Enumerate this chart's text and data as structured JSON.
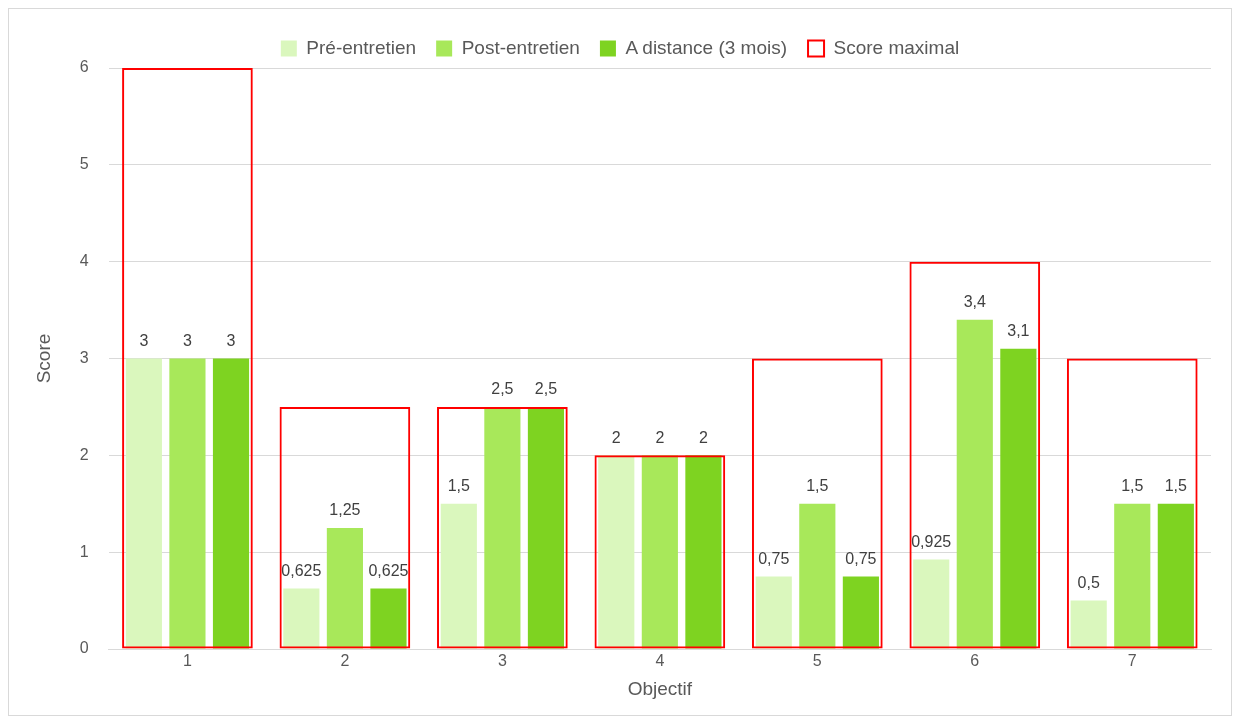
{
  "chart_data": {
    "type": "bar",
    "xlabel": "Objectif",
    "ylabel": "Score",
    "categories": [
      "1",
      "2",
      "3",
      "4",
      "5",
      "6",
      "7"
    ],
    "series": [
      {
        "name": "Pré-entretien",
        "color": "#daf7bd",
        "values": [
          3,
          0.625,
          1.5,
          2,
          0.75,
          0.925,
          0.5
        ],
        "value_labels": [
          "3",
          "0,625",
          "1,5",
          "2",
          "0,75",
          "0,925",
          "0,5"
        ]
      },
      {
        "name": "Post-entretien",
        "color": "#a8e85a",
        "values": [
          3,
          1.25,
          2.5,
          2,
          1.5,
          3.4,
          1.5
        ],
        "value_labels": [
          "3",
          "1,25",
          "2,5",
          "2",
          "1,5",
          "3,4",
          "1,5"
        ]
      },
      {
        "name": "A distance (3 mois)",
        "color": "#7ed321",
        "values": [
          3,
          0.625,
          2.5,
          2,
          0.75,
          3.1,
          1.5
        ],
        "value_labels": [
          "3",
          "0,625",
          "2,5",
          "2",
          "0,75",
          "3,1",
          "1,5"
        ]
      },
      {
        "name": "Score maximal",
        "color": "#ff0000",
        "axis": "y",
        "values": [
          6,
          2.5,
          2.5,
          2,
          3,
          4,
          3
        ]
      }
    ],
    "ylim": [
      0,
      6
    ],
    "yticks": [
      0,
      1,
      2,
      3,
      4,
      5,
      6
    ],
    "tick_labels": "xy",
    "grid": "y",
    "legend": "top"
  }
}
